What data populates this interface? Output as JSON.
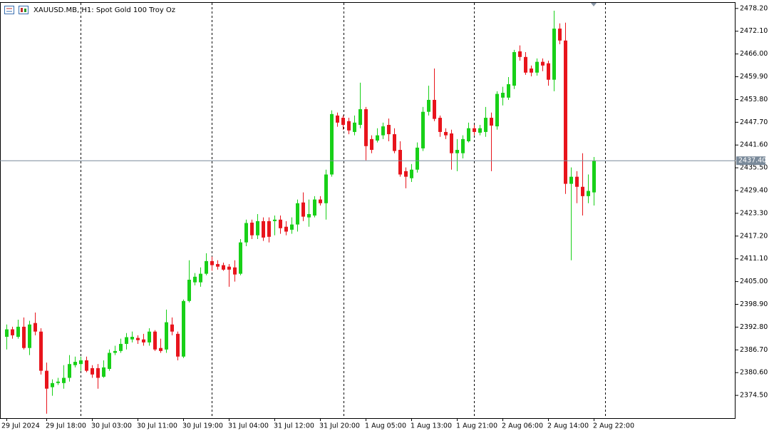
{
  "chart_data": {
    "type": "candlestick",
    "title": "XAUUSD.MB, H1:  Spot Gold 100 Troy Oz",
    "categories": [
      "29 Jul 2024",
      null,
      null,
      null,
      null,
      null,
      null,
      "29 Jul 18:00",
      null,
      null,
      null,
      null,
      null,
      null,
      null,
      "30 Jul 03:00",
      null,
      null,
      null,
      null,
      null,
      null,
      null,
      "30 Jul 11:00",
      null,
      null,
      null,
      null,
      null,
      null,
      null,
      "30 Jul 19:00",
      null,
      null,
      null,
      null,
      null,
      null,
      null,
      "31 Jul 04:00",
      null,
      null,
      null,
      null,
      null,
      null,
      null,
      "31 Jul 12:00",
      null,
      null,
      null,
      null,
      null,
      null,
      null,
      "31 Jul 20:00",
      null,
      null,
      null,
      null,
      null,
      null,
      null,
      "1 Aug 05:00",
      null,
      null,
      null,
      null,
      null,
      null,
      null,
      "1 Aug 13:00",
      null,
      null,
      null,
      null,
      null,
      null,
      null,
      "1 Aug 21:00",
      null,
      null,
      null,
      null,
      null,
      null,
      null,
      "2 Aug 06:00",
      null,
      null,
      null,
      null,
      null,
      null,
      null,
      "2 Aug 14:00",
      null,
      null,
      null,
      null,
      null,
      null,
      null,
      "2 Aug 22:00"
    ],
    "open": [
      2390.2,
      2392.2,
      2390.2,
      2392.9,
      2387.2,
      2393.9,
      2391.6,
      2381.1,
      2376.7,
      2377.8,
      2377.8,
      2379.2,
      2382.6,
      2382.9,
      2383.9,
      2381.8,
      2381.8,
      2379.5,
      2381.6,
      2385.9,
      2386.4,
      2388.3,
      2389.5,
      2389.9,
      2389.5,
      2388.7,
      2391.6,
      2387.2,
      2386.8,
      2393.5,
      2391.0,
      2384.9,
      2399.8,
      2404.8,
      2404.8,
      2407.1,
      2410.5,
      2409.7,
      2409.4,
      2409.0,
      2408.8,
      2407.1,
      2415.5,
      2420.8,
      2417.4,
      2421.2,
      2421.2,
      2421.2,
      2421.6,
      2419.7,
      2418.9,
      2420.3,
      2426.2,
      2422.2,
      2422.7,
      2427.0,
      2426.0,
      2433.7,
      2449.5,
      2448.9,
      2448.0,
      2445.1,
      2447.0,
      2451.2,
      2443.2,
      2442.8,
      2444.2,
      2447.0,
      2444.5,
      2440.3,
      2434.6,
      2432.7,
      2435.0,
      2440.7,
      2450.5,
      2453.7,
      2448.9,
      2445.1,
      2444.7,
      2439.4,
      2439.4,
      2442.6,
      2446.1,
      2444.9,
      2445.1,
      2448.9,
      2446.6,
      2454.3,
      2454.3,
      2457.5,
      2466.7,
      2465.2,
      2462.1,
      2461.0,
      2463.9,
      2463.5,
      2459.1,
      2472.8,
      2469.6,
      2431.2,
      2433.1,
      2430.4,
      2427.9,
      2428.9
    ],
    "high": [
      2393.5,
      2392.9,
      2394.8,
      2395.4,
      2394.5,
      2396.7,
      2392.5,
      2383.3,
      2378.8,
      2379.2,
      2382.6,
      2385.3,
      2384.9,
      2384.9,
      2384.9,
      2382.6,
      2382.9,
      2383.9,
      2386.8,
      2387.8,
      2389.7,
      2391.2,
      2391.6,
      2390.6,
      2391.0,
      2392.5,
      2392.0,
      2389.7,
      2397.5,
      2395.4,
      2391.6,
      2400.2,
      2410.7,
      2407.3,
      2408.8,
      2412.6,
      2411.7,
      2410.7,
      2410.1,
      2409.7,
      2410.7,
      2416.4,
      2421.6,
      2421.6,
      2423.1,
      2422.2,
      2422.2,
      2422.7,
      2422.7,
      2421.2,
      2422.2,
      2427.0,
      2428.9,
      2427.0,
      2427.9,
      2427.9,
      2435.0,
      2450.9,
      2450.3,
      2449.5,
      2448.9,
      2449.5,
      2458.3,
      2451.8,
      2444.2,
      2446.1,
      2447.6,
      2448.7,
      2446.1,
      2442.6,
      2435.6,
      2436.5,
      2442.3,
      2451.8,
      2457.5,
      2462.1,
      2449.5,
      2446.1,
      2445.7,
      2443.2,
      2444.2,
      2447.6,
      2447.0,
      2447.0,
      2451.8,
      2450.3,
      2456.0,
      2457.2,
      2459.8,
      2467.1,
      2468.3,
      2466.5,
      2462.9,
      2464.8,
      2464.8,
      2464.2,
      2477.6,
      2474.2,
      2474.4,
      2435.6,
      2434.6,
      2439.4,
      2433.7,
      2438.4
    ],
    "low": [
      2386.8,
      2389.7,
      2389.7,
      2386.8,
      2385.3,
      2390.6,
      2380.1,
      2369.6,
      2374.4,
      2377.3,
      2376.3,
      2378.2,
      2382.0,
      2381.1,
      2380.7,
      2379.2,
      2376.3,
      2379.2,
      2381.1,
      2385.3,
      2385.9,
      2386.8,
      2388.7,
      2388.3,
      2387.8,
      2387.8,
      2386.4,
      2385.9,
      2385.9,
      2390.6,
      2383.9,
      2384.5,
      2399.4,
      2404.0,
      2403.6,
      2406.7,
      2407.9,
      2408.2,
      2407.9,
      2403.6,
      2405.0,
      2406.7,
      2414.5,
      2416.4,
      2416.4,
      2415.9,
      2415.5,
      2417.4,
      2417.8,
      2417.4,
      2417.8,
      2418.4,
      2421.2,
      2419.7,
      2422.2,
      2425.4,
      2421.6,
      2433.1,
      2446.5,
      2445.7,
      2444.5,
      2444.2,
      2446.1,
      2437.5,
      2439.4,
      2442.3,
      2443.2,
      2442.6,
      2439.4,
      2433.1,
      2430.0,
      2431.7,
      2434.2,
      2440.0,
      2449.5,
      2448.0,
      2443.8,
      2443.2,
      2435.0,
      2434.6,
      2438.0,
      2442.3,
      2444.2,
      2444.2,
      2443.8,
      2434.6,
      2445.7,
      2452.2,
      2453.7,
      2456.6,
      2464.2,
      2460.4,
      2460.0,
      2460.2,
      2461.4,
      2457.5,
      2456.0,
      2468.6,
      2428.5,
      2410.7,
      2426.0,
      2422.7,
      2426.0,
      2425.4
    ],
    "close": [
      2392.2,
      2390.6,
      2392.9,
      2387.2,
      2393.5,
      2391.6,
      2381.1,
      2376.3,
      2377.8,
      2378.2,
      2379.2,
      2382.9,
      2383.5,
      2383.9,
      2381.1,
      2380.1,
      2379.2,
      2382.0,
      2385.9,
      2386.4,
      2388.3,
      2390.1,
      2390.2,
      2389.3,
      2388.7,
      2391.6,
      2386.8,
      2386.4,
      2394.1,
      2391.6,
      2384.9,
      2399.8,
      2405.5,
      2406.3,
      2407.1,
      2410.5,
      2409.4,
      2409.0,
      2408.2,
      2408.2,
      2406.9,
      2415.5,
      2420.7,
      2417.4,
      2421.2,
      2416.8,
      2417.0,
      2421.6,
      2419.3,
      2418.4,
      2420.3,
      2426.0,
      2422.4,
      2423.1,
      2427.0,
      2426.0,
      2433.7,
      2449.9,
      2447.6,
      2447.0,
      2445.5,
      2447.6,
      2451.2,
      2441.3,
      2440.3,
      2444.2,
      2446.6,
      2444.5,
      2440.0,
      2433.7,
      2433.1,
      2435.0,
      2440.9,
      2450.5,
      2453.7,
      2448.6,
      2445.1,
      2444.2,
      2439.4,
      2440.3,
      2443.2,
      2446.1,
      2445.1,
      2446.1,
      2448.9,
      2446.8,
      2455.3,
      2455.6,
      2457.9,
      2466.5,
      2465.2,
      2461.0,
      2461.0,
      2463.9,
      2462.9,
      2459.1,
      2472.8,
      2469.6,
      2431.2,
      2433.1,
      2430.4,
      2427.9,
      2429.3,
      2437.4
    ],
    "up_color": "#18d018",
    "down_color": "#e8141c",
    "ylim": [
      2368.4,
      2479.7
    ],
    "yticks": [
      {
        "value": 2478.2,
        "label": "2478.20"
      },
      {
        "value": 2472.1,
        "label": "2472.10"
      },
      {
        "value": 2466,
        "label": "2466.00"
      },
      {
        "value": 2459.9,
        "label": "2459.90"
      },
      {
        "value": 2453.8,
        "label": "2453.80"
      },
      {
        "value": 2447.7,
        "label": "2447.70"
      },
      {
        "value": 2441.6,
        "label": "2441.60"
      },
      {
        "value": 2435.5,
        "label": "2435.50"
      },
      {
        "value": 2429.4,
        "label": "2429.40"
      },
      {
        "value": 2423.3,
        "label": "2423.30"
      },
      {
        "value": 2417.2,
        "label": "2417.20"
      },
      {
        "value": 2411.1,
        "label": "2411.10"
      },
      {
        "value": 2405,
        "label": "2405.00"
      },
      {
        "value": 2398.9,
        "label": "2398.90"
      },
      {
        "value": 2392.8,
        "label": "2392.80"
      },
      {
        "value": 2386.7,
        "label": "2386.70"
      },
      {
        "value": 2380.6,
        "label": "2380.60"
      },
      {
        "value": 2374.5,
        "label": "2374.50"
      }
    ],
    "current_price": {
      "value": 2437.4,
      "label": "2437.40"
    },
    "current_price_color": "#7a8a9a",
    "grid": false
  }
}
